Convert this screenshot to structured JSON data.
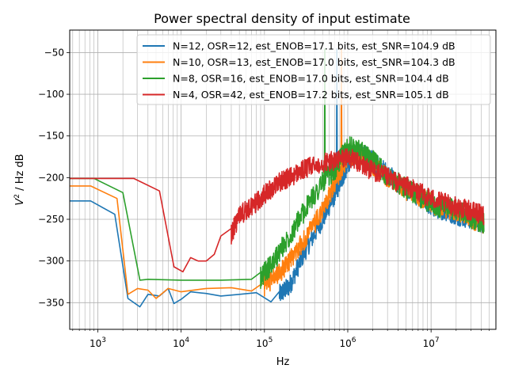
{
  "chart_data": {
    "type": "line",
    "title": "Power spectral density of input estimate",
    "xlabel": "Hz",
    "ylabel_prefix": "V",
    "ylabel_sup": "2",
    "ylabel_suffix": " / Hz dB",
    "x_scale": "log",
    "xlim": [
      460,
      60000000
    ],
    "ylim": [
      -382,
      -23
    ],
    "grid": true,
    "grid_minor_x": true,
    "legend_position": "top-right",
    "x_ticks": [
      {
        "value": 1000,
        "base": "10",
        "exp": "3"
      },
      {
        "value": 10000,
        "base": "10",
        "exp": "4"
      },
      {
        "value": 100000,
        "base": "10",
        "exp": "5"
      },
      {
        "value": 1000000,
        "base": "10",
        "exp": "6"
      },
      {
        "value": 10000000,
        "base": "10",
        "exp": "7"
      }
    ],
    "y_ticks": [
      {
        "value": -50,
        "label": "−50"
      },
      {
        "value": -100,
        "label": "−100"
      },
      {
        "value": -150,
        "label": "−150"
      },
      {
        "value": -200,
        "label": "−200"
      },
      {
        "value": -250,
        "label": "−250"
      },
      {
        "value": -300,
        "label": "−300"
      },
      {
        "value": -350,
        "label": "−350"
      }
    ],
    "series": [
      {
        "name": "N=12, OSR=12, est_ENOB=17.1 bits, est_SNR=104.9 dB",
        "color": "#1f77b4",
        "noise_start": 150000,
        "noise_amp": 12,
        "x": [
          460,
          820,
          1600,
          2300,
          3200,
          4000,
          5500,
          7000,
          8200,
          10000,
          13000,
          20000,
          30000,
          50000,
          80000,
          120000,
          200000,
          300000,
          500000,
          700000,
          900000,
          1100000,
          1500000,
          2000000,
          3000000,
          5000000,
          8000000,
          10000000,
          15000000,
          20000000,
          30000000,
          43000000
        ],
        "y": [
          -228,
          -228,
          -244,
          -345,
          -355,
          -340,
          -342,
          -333,
          -351,
          -346,
          -337,
          -339,
          -342,
          -340,
          -338,
          -349,
          -330,
          -290,
          -250,
          -220,
          -195,
          -175,
          -170,
          -180,
          -195,
          -215,
          -225,
          -235,
          -240,
          -245,
          -250,
          -255
        ],
        "spikes": [
          {
            "x": 740000,
            "y": -45,
            "w": 0.012
          }
        ]
      },
      {
        "name": "N=10, OSR=13, est_ENOB=17.0 bits, est_SNR=104.3 dB",
        "color": "#ff7f0e",
        "noise_start": 100000,
        "noise_amp": 12,
        "x": [
          460,
          820,
          1700,
          2300,
          3000,
          4000,
          5000,
          7000,
          10000,
          20000,
          40000,
          70000,
          100000,
          150000,
          200000,
          300000,
          500000,
          700000,
          1000000,
          1500000,
          2000000,
          3000000,
          5000000,
          8000000,
          12000000,
          20000000,
          30000000,
          43000000
        ],
        "y": [
          -210,
          -210,
          -225,
          -340,
          -333,
          -335,
          -345,
          -333,
          -337,
          -333,
          -332,
          -336,
          -330,
          -315,
          -300,
          -275,
          -240,
          -205,
          -175,
          -175,
          -185,
          -200,
          -215,
          -225,
          -235,
          -240,
          -250,
          -255
        ],
        "spikes": [
          {
            "x": 840000,
            "y": -45,
            "w": 0.012
          }
        ]
      },
      {
        "name": "N=8, OSR=16, est_ENOB=17.0 bits, est_SNR=104.4 dB",
        "color": "#2ca02c",
        "noise_start": 90000,
        "noise_amp": 13,
        "x": [
          460,
          900,
          2000,
          3200,
          4000,
          10000,
          30000,
          70000,
          90000,
          120000,
          200000,
          300000,
          500000,
          700000,
          1000000,
          1500000,
          2000000,
          3000000,
          5000000,
          8000000,
          12000000,
          20000000,
          30000000,
          43000000
        ],
        "y": [
          -201,
          -201,
          -218,
          -323,
          -322,
          -323,
          -323,
          -322,
          -320,
          -305,
          -270,
          -240,
          -205,
          -190,
          -162,
          -170,
          -180,
          -198,
          -213,
          -225,
          -235,
          -238,
          -248,
          -255
        ],
        "spikes": [
          {
            "x": 530000,
            "y": -45,
            "w": 0.01
          }
        ]
      },
      {
        "name": "N=4, OSR=42, est_ENOB=17.2 bits, est_SNR=105.1 dB",
        "color": "#d62728",
        "noise_start": 40000,
        "noise_amp": 12,
        "x": [
          460,
          2700,
          5500,
          8200,
          10500,
          13000,
          16000,
          20000,
          25000,
          30000,
          40000,
          50000,
          70000,
          100000,
          150000,
          200000,
          300000,
          500000,
          700000,
          1000000,
          1500000,
          2000000,
          3000000,
          5000000,
          8000000,
          12000000,
          20000000,
          30000000,
          43000000
        ],
        "y": [
          -201,
          -201,
          -216,
          -307,
          -313,
          -296,
          -300,
          -300,
          -292,
          -270,
          -268,
          -245,
          -235,
          -220,
          -205,
          -200,
          -190,
          -182,
          -180,
          -175,
          -185,
          -192,
          -200,
          -210,
          -220,
          -228,
          -235,
          -240,
          -245
        ],
        "spikes": []
      }
    ]
  }
}
